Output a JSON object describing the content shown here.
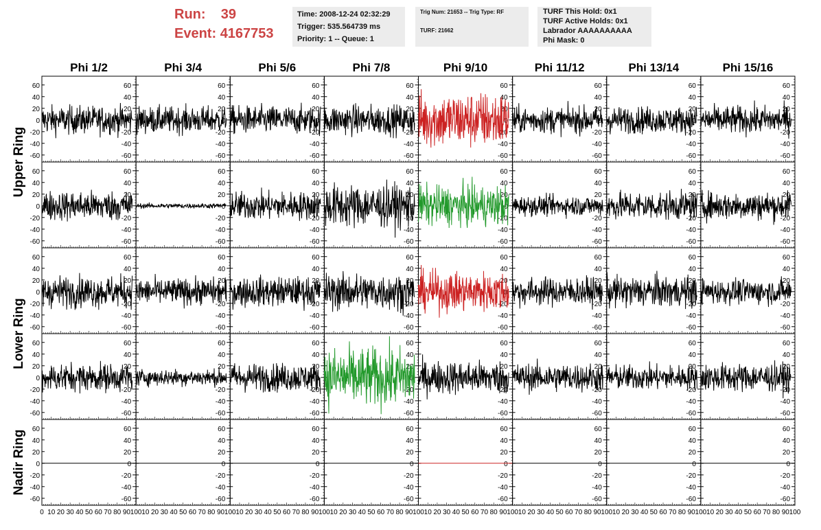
{
  "header": {
    "run_label": "Run:",
    "run_value": "39",
    "event_label": "Event:",
    "event_value": "4167753",
    "time": "Time: 2008-12-24 02:32:29",
    "trigger": "Trigger: 535.564739 ms",
    "priority": "Priority: 1 -- Queue: 1",
    "trig_num": "Trig Num: 21653 -- Trig Type: RF",
    "turf": "TURF: 21662",
    "turf_this_hold": "TURF This Hold: 0x1",
    "turf_active_holds": "TURF Active Holds: 0x1",
    "labrador": "Labrador AAAAAAAAAA",
    "phi_mask": "Phi Mask: 0"
  },
  "colors": {
    "normal": "#000000",
    "triggered": "#cc2222",
    "highlight": "#22992b"
  },
  "chart_data": {
    "type": "line",
    "columns": [
      "Phi 1/2",
      "Phi 3/4",
      "Phi 5/6",
      "Phi 7/8",
      "Phi 9/10",
      "Phi 11/12",
      "Phi 13/14",
      "Phi 15/16"
    ],
    "rows": [
      "Upper Ring",
      "Upper Ring",
      "Lower Ring",
      "Lower Ring",
      "Nadir Ring"
    ],
    "row_labels": [
      "Upper Ring",
      "Lower Ring",
      "Nadir Ring"
    ],
    "xlim": [
      0,
      100
    ],
    "ylim": [
      -72,
      75
    ],
    "x_ticks": [
      0,
      10,
      20,
      30,
      40,
      50,
      60,
      70,
      80,
      90,
      100
    ],
    "y_ticks": [
      -60,
      -40,
      -20,
      0,
      20,
      40,
      60
    ],
    "samples_per_trace": 260,
    "traces": [
      [
        {
          "amp": 17,
          "color": "normal"
        },
        {
          "amp": 16,
          "color": "normal"
        },
        {
          "amp": 17,
          "color": "normal"
        },
        {
          "amp": 18,
          "color": "normal"
        },
        {
          "amp": 34,
          "color": "triggered"
        },
        {
          "amp": 16,
          "color": "normal"
        },
        {
          "amp": 16,
          "color": "normal"
        },
        {
          "amp": 17,
          "color": "normal"
        }
      ],
      [
        {
          "amp": 18,
          "color": "normal"
        },
        {
          "amp": 3,
          "color": "normal"
        },
        {
          "amp": 17,
          "color": "normal"
        },
        {
          "amp": 26,
          "color": "normal"
        },
        {
          "amp": 24,
          "color": "highlight"
        },
        {
          "amp": 12,
          "color": "normal"
        },
        {
          "amp": 17,
          "color": "normal"
        },
        {
          "amp": 17,
          "color": "normal"
        }
      ],
      [
        {
          "amp": 19,
          "color": "normal"
        },
        {
          "amp": 16,
          "color": "normal"
        },
        {
          "amp": 18,
          "color": "normal"
        },
        {
          "amp": 22,
          "color": "normal"
        },
        {
          "amp": 24,
          "color": "triggered"
        },
        {
          "amp": 17,
          "color": "normal"
        },
        {
          "amp": 19,
          "color": "normal"
        },
        {
          "amp": 15,
          "color": "normal"
        }
      ],
      [
        {
          "amp": 17,
          "color": "normal"
        },
        {
          "amp": 10,
          "color": "normal"
        },
        {
          "amp": 17,
          "color": "normal"
        },
        {
          "amp": 36,
          "color": "highlight"
        },
        {
          "amp": 20,
          "color": "normal"
        },
        {
          "amp": 17,
          "color": "normal"
        },
        {
          "amp": 15,
          "color": "normal"
        },
        {
          "amp": 17,
          "color": "normal"
        }
      ],
      [
        {
          "amp": 0,
          "color": "normal"
        },
        {
          "amp": 0,
          "color": "normal"
        },
        {
          "amp": 0,
          "color": "normal"
        },
        {
          "amp": 0,
          "color": "normal"
        },
        {
          "amp": 0,
          "color": "triggered"
        },
        {
          "amp": 0,
          "color": "normal"
        },
        {
          "amp": 0,
          "color": "normal"
        },
        {
          "amp": 0,
          "color": "normal"
        }
      ]
    ]
  }
}
